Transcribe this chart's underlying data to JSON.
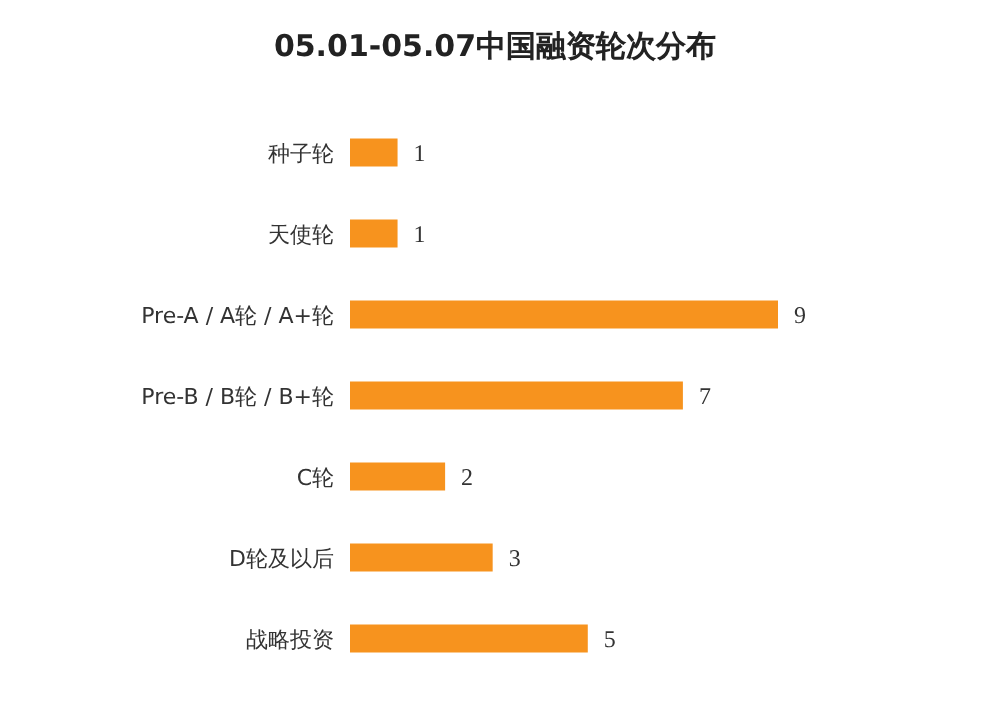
{
  "chart_data": {
    "type": "bar",
    "orientation": "horizontal",
    "title": "05.01-05.07中国融资轮次分布",
    "categories": [
      "种子轮",
      "天使轮",
      "Pre-A / A轮 / A+轮",
      "Pre-B / B轮 / B+轮",
      "C轮",
      "D轮及以后",
      "战略投资"
    ],
    "values": [
      1,
      1,
      9,
      7,
      2,
      3,
      5
    ],
    "color": "#f7931e",
    "data_labels": true
  }
}
